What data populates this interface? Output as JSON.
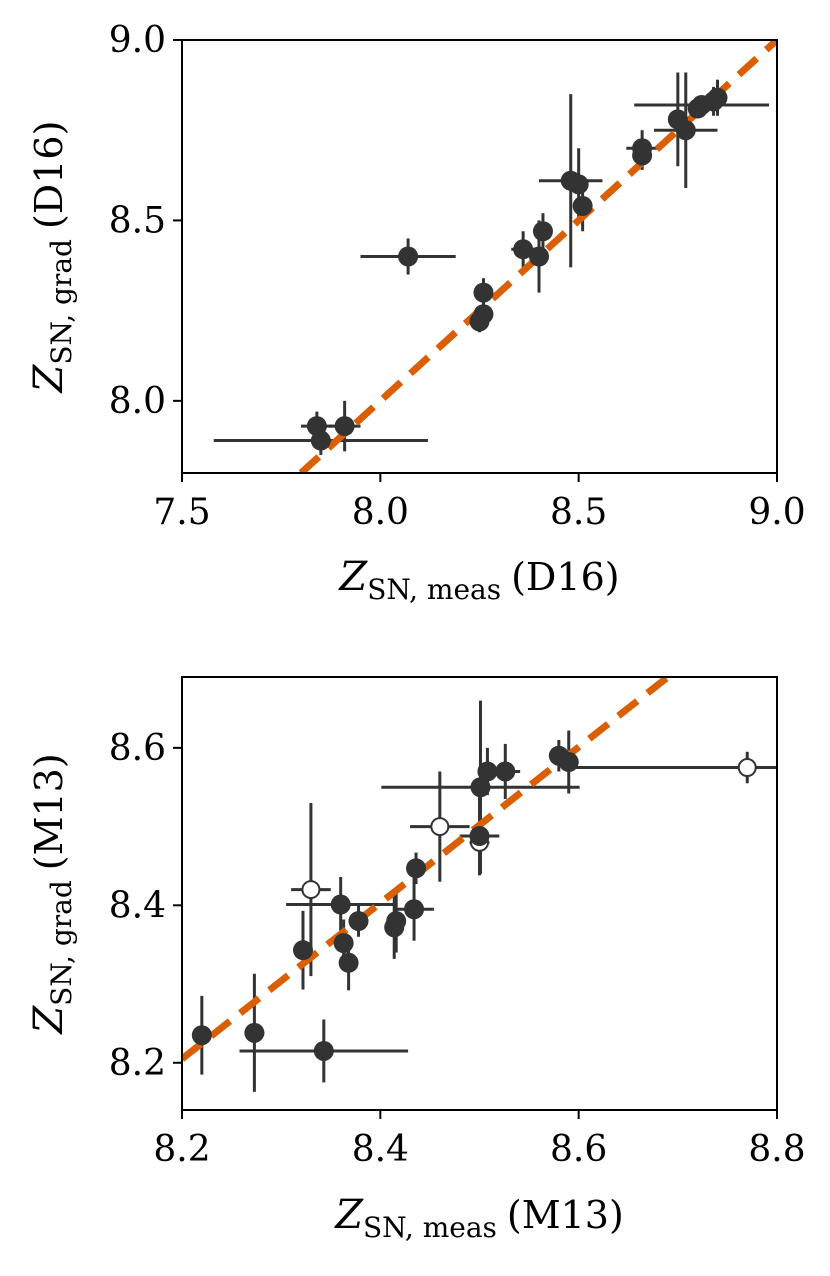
{
  "chart_data": [
    {
      "type": "scatter",
      "xlabel": {
        "main": "Z",
        "sub": "SN, meas",
        "tail": "(D16)"
      },
      "ylabel": {
        "main": "Z",
        "sub": "SN, grad",
        "tail": "(D16)"
      },
      "xlim": [
        7.5,
        9.0
      ],
      "ylim": [
        7.8,
        9.0
      ],
      "xticks": [
        "7.5",
        "8.0",
        "8.5",
        "9.0"
      ],
      "yticks": [
        "8.0",
        "8.5",
        "9.0"
      ],
      "fit_line": {
        "from": [
          7.8,
          7.8
        ],
        "to": [
          9.0,
          9.0
        ]
      },
      "colors": {
        "points": "#333333",
        "fit": "#d95f02"
      },
      "points": [
        {
          "x": 7.85,
          "y": 7.89,
          "xerr": 0.27,
          "yerr": 0.04,
          "open": false
        },
        {
          "x": 7.84,
          "y": 7.93,
          "xerr": 0.04,
          "yerr": 0.04,
          "open": false
        },
        {
          "x": 7.91,
          "y": 7.93,
          "xerr": 0.04,
          "yerr": 0.07,
          "open": false
        },
        {
          "x": 8.07,
          "y": 8.4,
          "xerr": 0.12,
          "yerr": 0.05,
          "open": false
        },
        {
          "x": 8.25,
          "y": 8.22,
          "xerr": 0.01,
          "yerr": 0.03,
          "open": false
        },
        {
          "x": 8.26,
          "y": 8.24,
          "xerr": 0.01,
          "yerr": 0.04,
          "open": false
        },
        {
          "x": 8.26,
          "y": 8.3,
          "xerr": 0.01,
          "yerr": 0.04,
          "open": false
        },
        {
          "x": 8.36,
          "y": 8.42,
          "xerr": 0.03,
          "yerr": 0.05,
          "open": false
        },
        {
          "x": 8.4,
          "y": 8.4,
          "xerr": 0.02,
          "yerr": 0.1,
          "open": false
        },
        {
          "x": 8.41,
          "y": 8.47,
          "xerr": 0.01,
          "yerr": 0.05,
          "open": false
        },
        {
          "x": 8.48,
          "y": 8.61,
          "xerr": 0.08,
          "yerr": 0.24,
          "open": false
        },
        {
          "x": 8.5,
          "y": 8.6,
          "xerr": 0.02,
          "yerr": 0.1,
          "open": false
        },
        {
          "x": 8.51,
          "y": 8.54,
          "xerr": 0.01,
          "yerr": 0.07,
          "open": false
        },
        {
          "x": 8.66,
          "y": 8.7,
          "xerr": 0.04,
          "yerr": 0.05,
          "open": false
        },
        {
          "x": 8.66,
          "y": 8.68,
          "xerr": 0.01,
          "yerr": 0.04,
          "open": false
        },
        {
          "x": 8.75,
          "y": 8.78,
          "xerr": 0.01,
          "yerr": 0.13,
          "open": false
        },
        {
          "x": 8.77,
          "y": 8.75,
          "xerr": 0.08,
          "yerr": 0.16,
          "open": false
        },
        {
          "x": 8.8,
          "y": 8.81,
          "xerr": 0.02,
          "yerr": 0.02,
          "open": false
        },
        {
          "x": 8.81,
          "y": 8.82,
          "xerr": 0.17,
          "yerr": 0.02,
          "open": false
        },
        {
          "x": 8.84,
          "y": 8.83,
          "xerr": 0.02,
          "yerr": 0.04,
          "open": false
        },
        {
          "x": 8.85,
          "y": 8.84,
          "xerr": 0.01,
          "yerr": 0.05,
          "open": false
        }
      ]
    },
    {
      "type": "scatter",
      "xlabel": {
        "main": "Z",
        "sub": "SN, meas",
        "tail": "(M13)"
      },
      "ylabel": {
        "main": "Z",
        "sub": "SN, grad",
        "tail": "(M13)"
      },
      "xlim": [
        8.2,
        8.8
      ],
      "ylim": [
        8.14,
        8.69
      ],
      "xticks": [
        "8.2",
        "8.4",
        "8.6",
        "8.8"
      ],
      "yticks": [
        "8.2",
        "8.4",
        "8.6"
      ],
      "fit_line": {
        "from": [
          8.2,
          8.205
        ],
        "to": [
          8.69,
          8.69
        ]
      },
      "colors": {
        "points": "#333333",
        "fit": "#d95f02"
      },
      "points": [
        {
          "x": 8.22,
          "y": 8.235,
          "xerr": 0.005,
          "yerr": 0.05,
          "open": false
        },
        {
          "x": 8.273,
          "y": 8.238,
          "xerr": 0.01,
          "yerr": 0.075,
          "open": false
        },
        {
          "x": 8.343,
          "y": 8.215,
          "xerr": 0.085,
          "yerr": 0.04,
          "open": false
        },
        {
          "x": 8.322,
          "y": 8.343,
          "xerr": 0.005,
          "yerr": 0.05,
          "open": false
        },
        {
          "x": 8.33,
          "y": 8.42,
          "xerr": 0.02,
          "yerr": 0.11,
          "open": true
        },
        {
          "x": 8.36,
          "y": 8.401,
          "xerr": 0.055,
          "yerr": 0.035,
          "open": false
        },
        {
          "x": 8.363,
          "y": 8.352,
          "xerr": 0.005,
          "yerr": 0.03,
          "open": false
        },
        {
          "x": 8.368,
          "y": 8.327,
          "xerr": 0.005,
          "yerr": 0.035,
          "open": false
        },
        {
          "x": 8.378,
          "y": 8.38,
          "xerr": 0.01,
          "yerr": 0.02,
          "open": false
        },
        {
          "x": 8.414,
          "y": 8.372,
          "xerr": 0.005,
          "yerr": 0.04,
          "open": false
        },
        {
          "x": 8.416,
          "y": 8.38,
          "xerr": 0.005,
          "yerr": 0.04,
          "open": false
        },
        {
          "x": 8.434,
          "y": 8.395,
          "xerr": 0.02,
          "yerr": 0.04,
          "open": false
        },
        {
          "x": 8.436,
          "y": 8.447,
          "xerr": 0.005,
          "yerr": 0.02,
          "open": false
        },
        {
          "x": 8.46,
          "y": 8.5,
          "xerr": 0.03,
          "yerr": 0.07,
          "open": true
        },
        {
          "x": 8.5,
          "y": 8.48,
          "xerr": 0.01,
          "yerr": 0.04,
          "open": true
        },
        {
          "x": 8.5,
          "y": 8.488,
          "xerr": 0.02,
          "yerr": 0.05,
          "open": false
        },
        {
          "x": 8.501,
          "y": 8.55,
          "xerr": 0.1,
          "yerr": 0.11,
          "open": false
        },
        {
          "x": 8.508,
          "y": 8.57,
          "xerr": 0.01,
          "yerr": 0.03,
          "open": false
        },
        {
          "x": 8.526,
          "y": 8.57,
          "xerr": 0.015,
          "yerr": 0.035,
          "open": false
        },
        {
          "x": 8.58,
          "y": 8.59,
          "xerr": 0.01,
          "yerr": 0.02,
          "open": false
        },
        {
          "x": 8.59,
          "y": 8.582,
          "xerr": 0.005,
          "yerr": 0.04,
          "open": false
        },
        {
          "x": 8.77,
          "y": 8.575,
          "xerr": 0.18,
          "yerr": 0.02,
          "open": true
        }
      ]
    }
  ]
}
